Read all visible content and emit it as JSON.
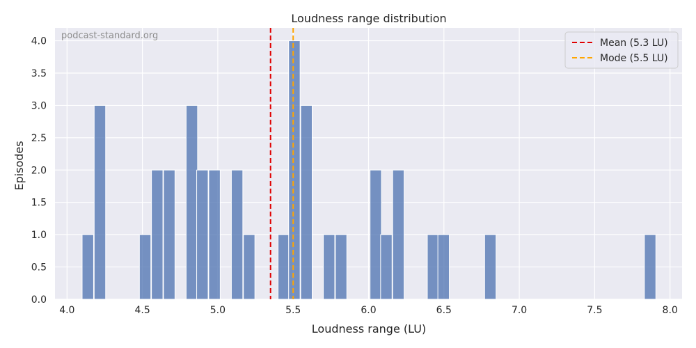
{
  "chart_data": {
    "type": "bar",
    "title": "Loudness range distribution",
    "xlabel": "Loudness range (LU)",
    "ylabel": "Episodes",
    "watermark": "podcast-standard.org",
    "xlim": [
      3.92,
      8.08
    ],
    "ylim": [
      0,
      4.2
    ],
    "xticks": [
      "4.0",
      "4.5",
      "5.0",
      "5.5",
      "6.0",
      "6.5",
      "7.0",
      "7.5",
      "8.0"
    ],
    "yticks": [
      "0.0",
      "0.5",
      "1.0",
      "1.5",
      "2.0",
      "2.5",
      "3.0",
      "3.5",
      "4.0"
    ],
    "bin_width": 0.076,
    "bins": [
      {
        "x": 4.1,
        "count": 1
      },
      {
        "x": 4.18,
        "count": 3
      },
      {
        "x": 4.48,
        "count": 1
      },
      {
        "x": 4.56,
        "count": 2
      },
      {
        "x": 4.64,
        "count": 2
      },
      {
        "x": 4.79,
        "count": 3
      },
      {
        "x": 4.86,
        "count": 2
      },
      {
        "x": 4.94,
        "count": 2
      },
      {
        "x": 5.09,
        "count": 2
      },
      {
        "x": 5.17,
        "count": 1
      },
      {
        "x": 5.4,
        "count": 1
      },
      {
        "x": 5.47,
        "count": 4
      },
      {
        "x": 5.55,
        "count": 3
      },
      {
        "x": 5.7,
        "count": 1
      },
      {
        "x": 5.78,
        "count": 1
      },
      {
        "x": 6.01,
        "count": 2
      },
      {
        "x": 6.08,
        "count": 1
      },
      {
        "x": 6.16,
        "count": 2
      },
      {
        "x": 6.39,
        "count": 1
      },
      {
        "x": 6.46,
        "count": 1
      },
      {
        "x": 6.77,
        "count": 1
      },
      {
        "x": 7.83,
        "count": 1
      }
    ],
    "bar_color": "#4c72b0",
    "reference_lines": [
      {
        "name": "Mean (5.3 LU)",
        "x": 5.35,
        "color": "#e00000",
        "dash": "7,4"
      },
      {
        "name": "Mode (5.5 LU)",
        "x": 5.5,
        "color": "#ffa500",
        "dash": "7,4"
      }
    ],
    "grid": true,
    "legend_position": "top-right"
  }
}
